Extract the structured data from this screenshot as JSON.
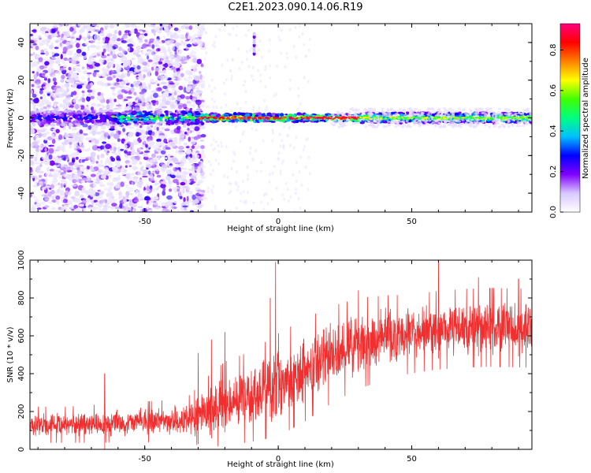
{
  "title": "C2E1.2023.090.14.06.R19",
  "chart_data": [
    {
      "type": "heatmap",
      "xlabel": "Height of straight line (km)",
      "ylabel": "Frequency (Hz)",
      "xlim": [
        -93,
        95
      ],
      "ylim": [
        -50,
        50
      ],
      "xticks": [
        -50,
        0,
        50
      ],
      "yticks": [
        -40,
        -20,
        0,
        20,
        40
      ],
      "grid": false,
      "colorbar": {
        "label": "Normalized spectral amplitude",
        "range": [
          0,
          0.93
        ],
        "ticks": [
          "0.0",
          "0.2",
          "0.4",
          "0.6",
          "0.8"
        ],
        "colors": [
          "#ffffff",
          "#d8c8ff",
          "#8000ff",
          "#0000ff",
          "#00c0ff",
          "#00ff80",
          "#40ff00",
          "#ffff00",
          "#ff8000",
          "#ff0000",
          "#ff0080"
        ]
      },
      "description_of_values": "noisy broadband scatter for x < -30 km; narrow high-amplitude band near 0 Hz for x > -30 km"
    },
    {
      "type": "line",
      "xlabel": "Height of straight line (km)",
      "ylabel": "SNR (10 * v/v)",
      "xlim": [
        -93,
        95
      ],
      "ylim": [
        0,
        1000
      ],
      "xticks": [
        -50,
        0,
        50
      ],
      "yticks": [
        0,
        200,
        400,
        600,
        800,
        1000
      ],
      "grid": false,
      "series": [
        {
          "color": "#f03030",
          "trend_x": [
            -93,
            -80,
            -60,
            -40,
            -33,
            -28,
            -20,
            -10,
            -5,
            0,
            10,
            20,
            30,
            40,
            50,
            60,
            70,
            80,
            95
          ],
          "trend_mean": [
            130,
            130,
            140,
            150,
            160,
            190,
            240,
            280,
            310,
            340,
            420,
            500,
            560,
            590,
            610,
            630,
            640,
            645,
            640
          ],
          "trend_spread": [
            60,
            60,
            65,
            70,
            80,
            110,
            140,
            150,
            160,
            170,
            170,
            160,
            150,
            140,
            130,
            130,
            130,
            130,
            130
          ],
          "spikes": [
            [
              -65,
              400
            ],
            [
              -30,
              510
            ],
            [
              -25,
              580
            ],
            [
              -20,
              620
            ],
            [
              -3,
              800
            ],
            [
              -1,
              990
            ],
            [
              30,
              840
            ],
            [
              60,
              1000
            ],
            [
              75,
              910
            ],
            [
              90,
              900
            ]
          ]
        }
      ]
    }
  ]
}
